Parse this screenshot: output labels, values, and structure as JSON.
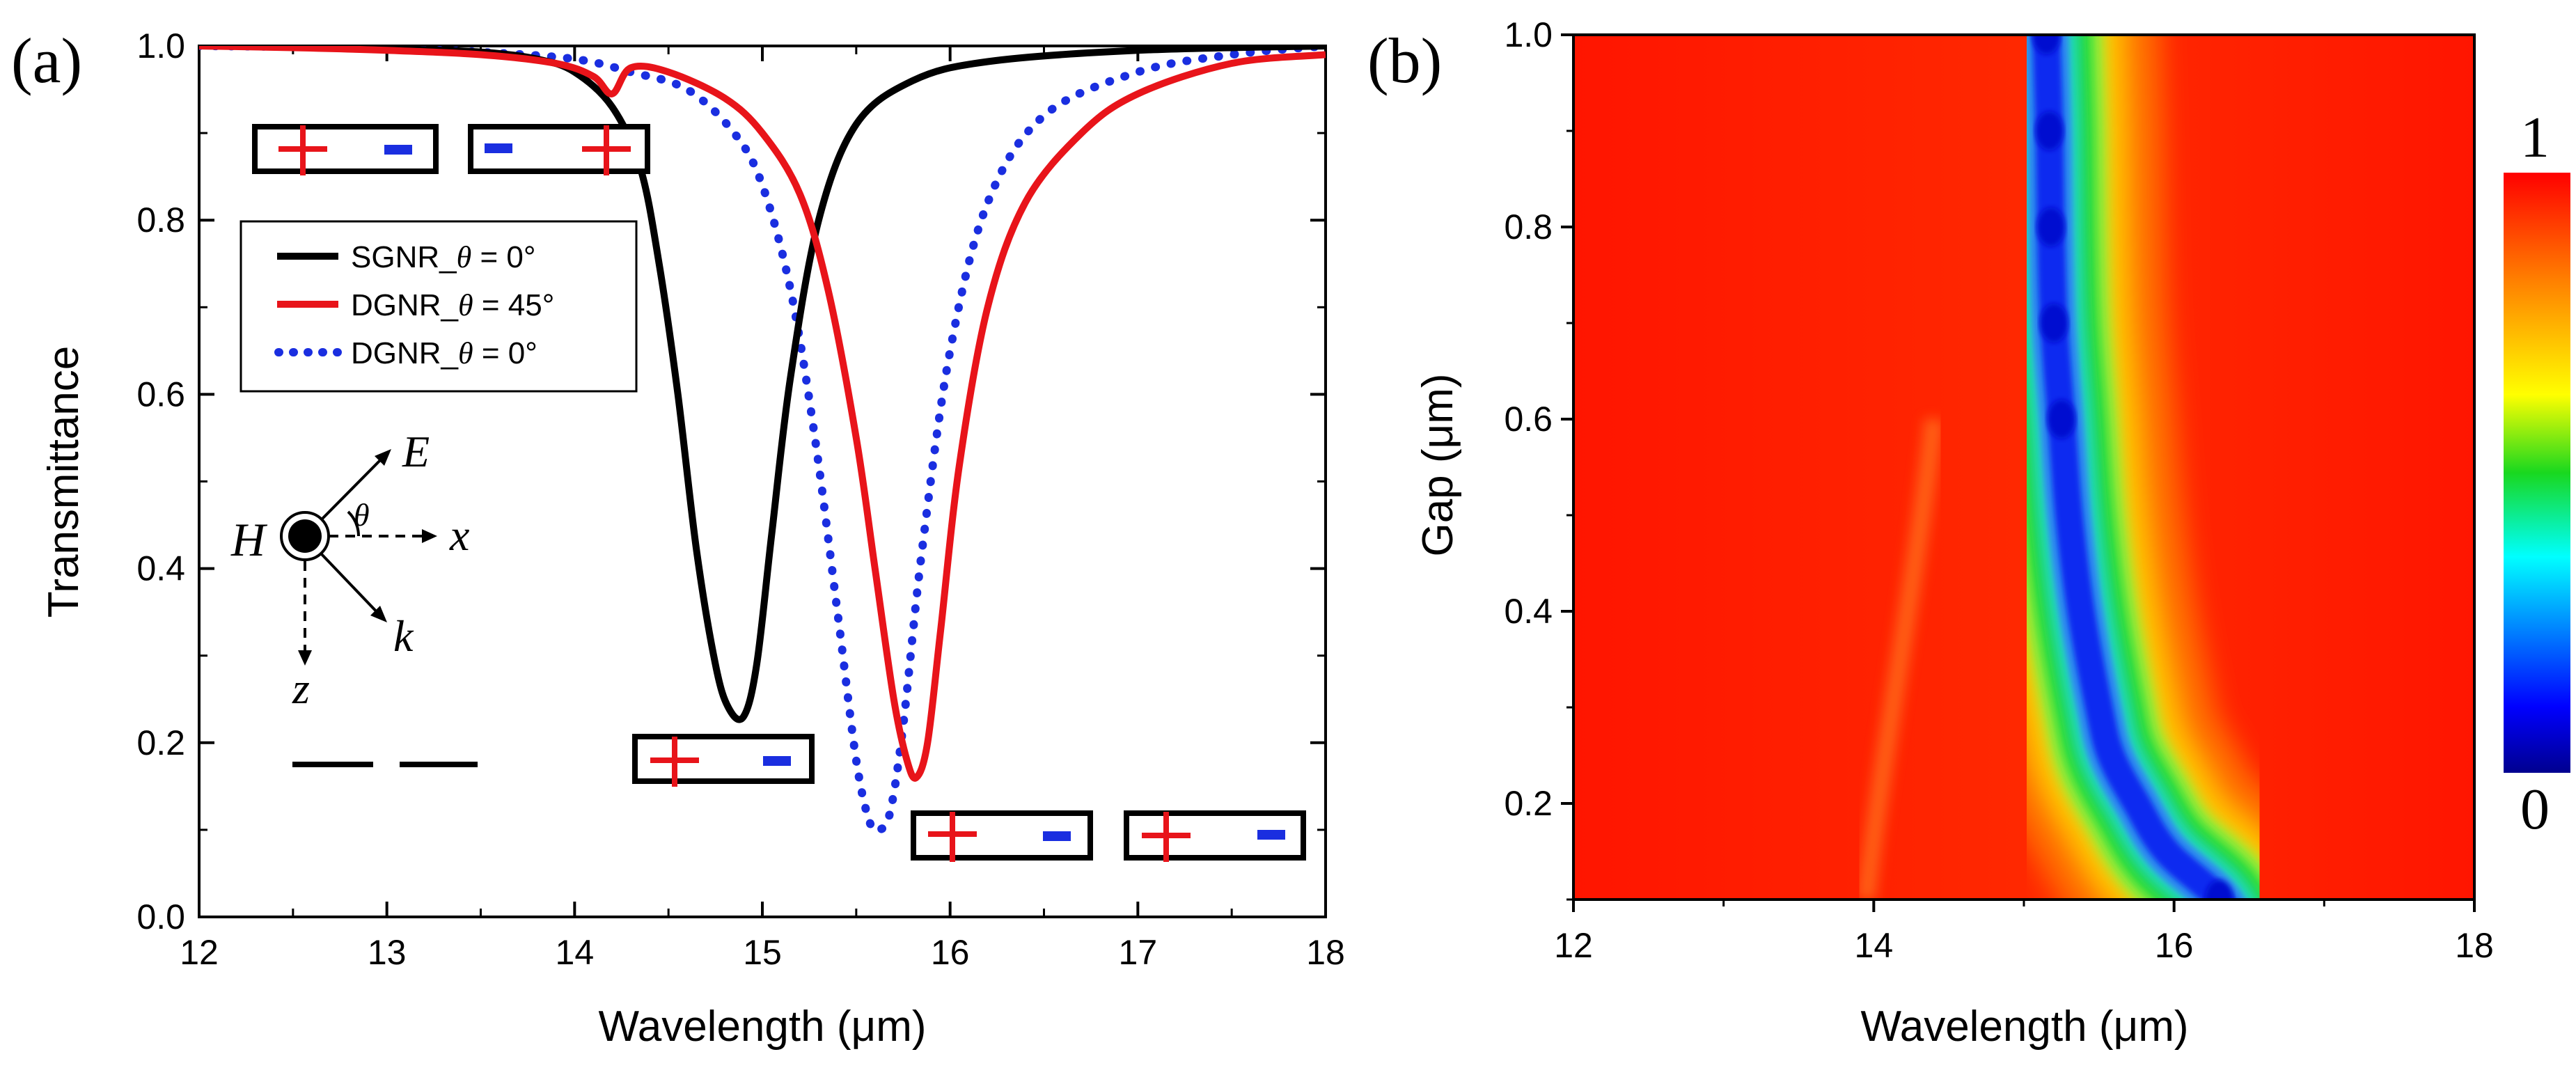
{
  "chart_data": [
    {
      "panel": "(a)",
      "type": "line",
      "title": "",
      "xlabel": "Wavelength (μm)",
      "ylabel": "Transmittance",
      "xlim": [
        12,
        18
      ],
      "ylim": [
        0.0,
        1.0
      ],
      "xticks": [
        12,
        13,
        14,
        15,
        16,
        17,
        18
      ],
      "yticks": [
        0.0,
        0.2,
        0.4,
        0.6,
        0.8,
        1.0
      ],
      "xtick_labels": [
        "12",
        "13",
        "14",
        "15",
        "16",
        "17",
        "18"
      ],
      "ytick_labels": [
        "0.0",
        "0.2",
        "0.4",
        "0.6",
        "0.8",
        "1.0"
      ],
      "grid": false,
      "legend_position": "upper-left",
      "series": [
        {
          "name": "SGNR_θ = 0°",
          "legend_prefix": "SGNR_",
          "legend_theta": "θ",
          "legend_suffix": " = 0°",
          "color": "#000000",
          "style": "solid",
          "x": [
            12.0,
            12.5,
            13.0,
            13.5,
            13.8,
            14.0,
            14.2,
            14.35,
            14.45,
            14.55,
            14.65,
            14.75,
            14.82,
            14.9,
            14.97,
            15.05,
            15.15,
            15.3,
            15.5,
            15.8,
            16.2,
            17.0,
            18.0
          ],
          "y": [
            1.0,
            0.999,
            0.997,
            0.993,
            0.985,
            0.97,
            0.93,
            0.86,
            0.75,
            0.6,
            0.42,
            0.29,
            0.24,
            0.23,
            0.29,
            0.44,
            0.62,
            0.8,
            0.91,
            0.96,
            0.982,
            0.995,
            1.0
          ]
        },
        {
          "name": "DGNR_θ = 45°",
          "legend_prefix": "DGNR_",
          "legend_theta": "θ",
          "legend_suffix": " = 45°",
          "color": "#e8141a",
          "style": "solid",
          "x": [
            12.0,
            12.5,
            13.0,
            13.5,
            13.9,
            14.1,
            14.2,
            14.3,
            14.5,
            14.8,
            15.0,
            15.2,
            15.35,
            15.5,
            15.6,
            15.7,
            15.77,
            15.82,
            15.88,
            15.95,
            16.05,
            16.2,
            16.4,
            16.7,
            17.0,
            17.5,
            18.0
          ],
          "y": [
            1.0,
            0.998,
            0.995,
            0.99,
            0.98,
            0.965,
            0.945,
            0.975,
            0.97,
            0.94,
            0.9,
            0.83,
            0.72,
            0.55,
            0.4,
            0.25,
            0.18,
            0.16,
            0.2,
            0.33,
            0.52,
            0.7,
            0.82,
            0.9,
            0.945,
            0.98,
            0.99
          ]
        },
        {
          "name": "DGNR_θ = 0°",
          "legend_prefix": "DGNR_",
          "legend_theta": "θ",
          "legend_suffix": " = 0°",
          "color": "#1a2ee0",
          "style": "dotted",
          "x": [
            12.0,
            12.5,
            13.0,
            13.5,
            14.0,
            14.3,
            14.6,
            14.85,
            15.0,
            15.15,
            15.28,
            15.4,
            15.5,
            15.57,
            15.62,
            15.68,
            15.75,
            15.85,
            16.0,
            16.2,
            16.5,
            17.0,
            17.5,
            18.0
          ],
          "y": [
            1.0,
            0.999,
            0.997,
            0.993,
            0.985,
            0.97,
            0.95,
            0.9,
            0.84,
            0.72,
            0.55,
            0.35,
            0.18,
            0.11,
            0.1,
            0.12,
            0.22,
            0.42,
            0.65,
            0.82,
            0.92,
            0.97,
            0.99,
            1.0
          ]
        }
      ],
      "annotations": {
        "field_H": "H",
        "field_E": "E",
        "field_theta": "θ",
        "field_x": "x",
        "field_k": "k",
        "field_z": "z"
      }
    },
    {
      "panel": "(b)",
      "type": "heatmap",
      "title": "",
      "xlabel": "Wavelength (μm)",
      "ylabel": "Gap (μm)",
      "xlim": [
        12,
        18
      ],
      "ylim": [
        0.1,
        1.0
      ],
      "xticks": [
        12,
        14,
        16,
        18
      ],
      "yticks": [
        0.2,
        0.4,
        0.6,
        0.8,
        1.0
      ],
      "xtick_labels": [
        "12",
        "14",
        "16",
        "18"
      ],
      "ytick_labels": [
        "0.2",
        "0.4",
        "0.6",
        "0.8",
        "1.0"
      ],
      "grid": false,
      "colorbar": {
        "min_label": "0",
        "max_label": "1",
        "min": 0,
        "max": 1
      },
      "resonance_ridge": {
        "gap": [
          0.1,
          0.15,
          0.2,
          0.25,
          0.3,
          0.4,
          0.5,
          0.6,
          0.7,
          0.8,
          0.9,
          1.0
        ],
        "wavelength": [
          16.3,
          15.95,
          15.75,
          15.58,
          15.5,
          15.38,
          15.3,
          15.25,
          15.2,
          15.18,
          15.17,
          15.15
        ],
        "min_transmittance": [
          0.05,
          0.12,
          0.1,
          0.15,
          0.14,
          0.12,
          0.08,
          0.06,
          0.05,
          0.05,
          0.06,
          0.06
        ]
      }
    }
  ]
}
